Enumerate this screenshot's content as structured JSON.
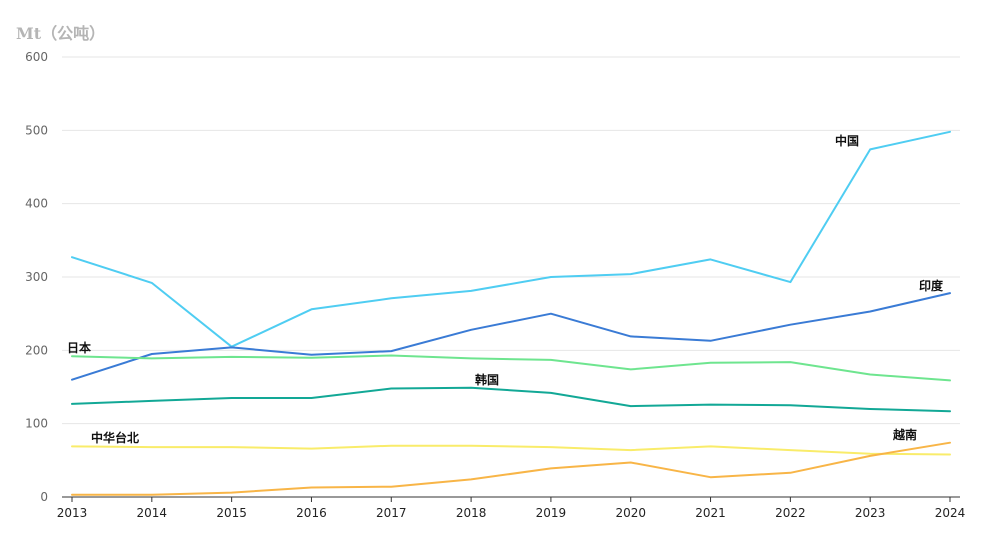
{
  "chart_data": {
    "type": "line",
    "unit": "Mt（公吨）",
    "x": [
      2013,
      2014,
      2015,
      2016,
      2017,
      2018,
      2019,
      2020,
      2021,
      2022,
      2023,
      2024
    ],
    "x_tick_labels": [
      "2013",
      "2014",
      "2015",
      "2016",
      "2017",
      "2018",
      "2019",
      "2020",
      "2021",
      "2022",
      "2023",
      "2024"
    ],
    "ylim": [
      0,
      600
    ],
    "y_ticks": [
      0,
      100,
      200,
      300,
      400,
      500,
      600
    ],
    "grid": true,
    "series": [
      {
        "name": "中国",
        "color": "#4FCDF2",
        "values": [
          327,
          292,
          205,
          256,
          271,
          281,
          300,
          304,
          324,
          293,
          474,
          498
        ]
      },
      {
        "name": "印度",
        "color": "#3A7BD5",
        "values": [
          160,
          195,
          204,
          194,
          199,
          228,
          250,
          219,
          213,
          235,
          253,
          278
        ]
      },
      {
        "name": "日本",
        "color": "#6EE58F",
        "values": [
          192,
          189,
          191,
          190,
          193,
          189,
          187,
          174,
          183,
          184,
          167,
          159
        ]
      },
      {
        "name": "韩国",
        "color": "#12A896",
        "values": [
          127,
          131,
          135,
          135,
          148,
          149,
          142,
          124,
          126,
          125,
          120,
          117
        ]
      },
      {
        "name": "中华台北",
        "color": "#F9EC6A",
        "values": [
          69,
          68,
          68,
          66,
          70,
          70,
          68,
          64,
          69,
          64,
          59,
          58
        ]
      },
      {
        "name": "越南",
        "color": "#F8B547",
        "values": [
          3,
          3,
          6,
          13,
          14,
          24,
          39,
          47,
          27,
          33,
          56,
          74
        ]
      }
    ]
  }
}
